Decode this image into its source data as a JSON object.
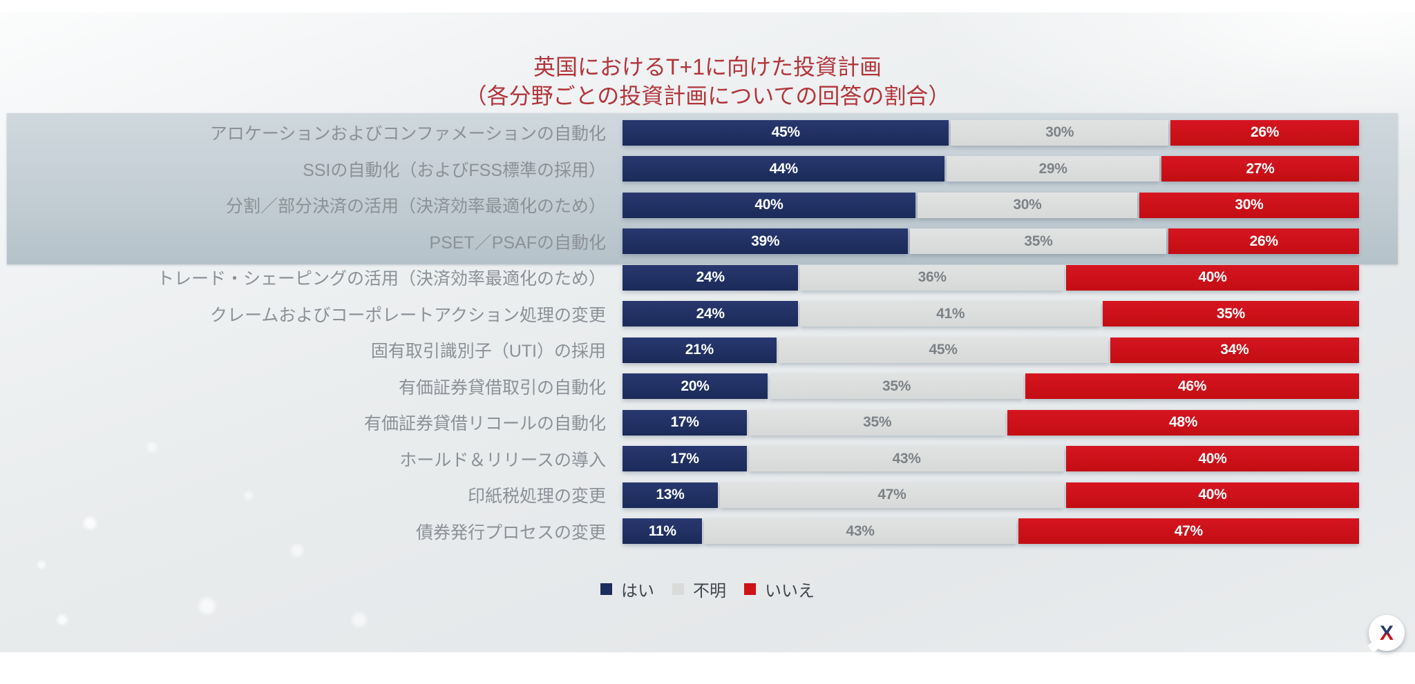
{
  "title": {
    "line1": "英国におけるT+1に向けた投資計画",
    "line2": "（各分野ごとの投資計画についての回答の割合）"
  },
  "legend": [
    {
      "label": "はい",
      "color": "#1d2c5e"
    },
    {
      "label": "不明",
      "color": "#d9dbda"
    },
    {
      "label": "いいえ",
      "color": "#cf1118"
    }
  ],
  "badge": {
    "letter": "X"
  },
  "chart_data": {
    "type": "bar",
    "orientation": "horizontal",
    "stacked": true,
    "unit": "%",
    "title": "英国におけるT+1に向けた投資計画",
    "subtitle": "（各分野ごとの投資計画についての回答の割合）",
    "legend_position": "bottom",
    "grid": false,
    "highlighted_rows": [
      0,
      1,
      2,
      3
    ],
    "categories": [
      "アロケーションおよびコンファメーションの自動化",
      "SSIの自動化（およびFSS標準の採用）",
      "分割／部分決済の活用（決済効率最適化のため）",
      "PSET／PSAFの自動化",
      "トレード・シェーピングの活用（決済効率最適化のため）",
      "クレームおよびコーポレートアクション処理の変更",
      "固有取引識別子（UTI）の採用",
      "有価証券貸借取引の自動化",
      "有価証券貸借リコールの自動化",
      "ホールド＆リリースの導入",
      "印紙税処理の変更",
      "債券発行プロセスの変更"
    ],
    "series": [
      {
        "name": "はい",
        "key": "yes",
        "color": "#1d2c5e",
        "text_color": "#ffffff",
        "values": [
          45,
          44,
          40,
          39,
          24,
          24,
          21,
          20,
          17,
          17,
          13,
          11
        ]
      },
      {
        "name": "不明",
        "key": "unknown",
        "color": "#dcdedd",
        "text_color": "#7d8287",
        "values": [
          30,
          29,
          30,
          35,
          36,
          41,
          45,
          35,
          35,
          43,
          47,
          43
        ]
      },
      {
        "name": "いいえ",
        "key": "no",
        "color": "#cf1118",
        "text_color": "#ffffff",
        "values": [
          26,
          27,
          30,
          26,
          40,
          35,
          34,
          46,
          48,
          40,
          40,
          47
        ]
      }
    ],
    "colors": {
      "title": "#b1363b",
      "row_label": "#8b9197",
      "highlight_band": "#c3cdd4"
    }
  }
}
